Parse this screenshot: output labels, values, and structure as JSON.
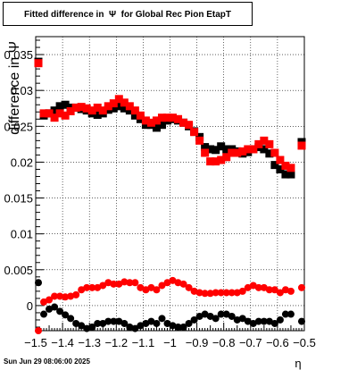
{
  "chart_data": {
    "type": "scatter",
    "title": "Fitted difference in  Ψ  for Global Rec Pion EtapT",
    "xlabel": "η",
    "ylabel": "difference in Ψ",
    "xlim": [
      -1.5,
      -0.5
    ],
    "ylim": [
      -0.0035,
      0.0375
    ],
    "grid": true,
    "x_ticks": [
      "−1.5",
      "−1.4",
      "−1.3",
      "−1.2",
      "−1.1",
      "−1",
      "−0.9",
      "−0.8",
      "−0.7",
      "−0.6",
      "−0.5"
    ],
    "y_ticks": [
      "0",
      "0.005",
      "0.01",
      "0.015",
      "0.02",
      "0.025",
      "0.03",
      "0.035"
    ],
    "series": [
      {
        "marker": "square",
        "color": "#000000",
        "points": [
          [
            -1.49,
            0.034
          ],
          [
            -1.47,
            0.0265
          ],
          [
            -1.45,
            0.0268
          ],
          [
            -1.43,
            0.0272
          ],
          [
            -1.41,
            0.0278
          ],
          [
            -1.39,
            0.028
          ],
          [
            -1.37,
            0.0276
          ],
          [
            -1.35,
            0.0276
          ],
          [
            -1.33,
            0.0274
          ],
          [
            -1.31,
            0.0272
          ],
          [
            -1.29,
            0.0268
          ],
          [
            -1.27,
            0.0266
          ],
          [
            -1.25,
            0.0268
          ],
          [
            -1.23,
            0.0273
          ],
          [
            -1.21,
            0.0275
          ],
          [
            -1.19,
            0.0278
          ],
          [
            -1.17,
            0.0275
          ],
          [
            -1.15,
            0.0272
          ],
          [
            -1.13,
            0.0265
          ],
          [
            -1.11,
            0.026
          ],
          [
            -1.09,
            0.0252
          ],
          [
            -1.07,
            0.0252
          ],
          [
            -1.05,
            0.0248
          ],
          [
            -1.03,
            0.0252
          ],
          [
            -1.01,
            0.0258
          ],
          [
            -0.99,
            0.026
          ],
          [
            -0.97,
            0.0258
          ],
          [
            -0.95,
            0.0255
          ],
          [
            -0.93,
            0.025
          ],
          [
            -0.91,
            0.0243
          ],
          [
            -0.89,
            0.0235
          ],
          [
            -0.87,
            0.0221
          ],
          [
            -0.85,
            0.0218
          ],
          [
            -0.83,
            0.0217
          ],
          [
            -0.81,
            0.0222
          ],
          [
            -0.79,
            0.0218
          ],
          [
            -0.77,
            0.0218
          ],
          [
            -0.75,
            0.0215
          ],
          [
            -0.73,
            0.0212
          ],
          [
            -0.71,
            0.0214
          ],
          [
            -0.69,
            0.0218
          ],
          [
            -0.67,
            0.0221
          ],
          [
            -0.65,
            0.0218
          ],
          [
            -0.63,
            0.0212
          ],
          [
            -0.61,
            0.0196
          ],
          [
            -0.59,
            0.019
          ],
          [
            -0.57,
            0.0183
          ],
          [
            -0.55,
            0.0183
          ],
          [
            -0.51,
            0.0228
          ]
        ]
      },
      {
        "marker": "square",
        "color": "#ff0000",
        "points": [
          [
            -1.49,
            0.0338
          ],
          [
            -1.47,
            0.0268
          ],
          [
            -1.45,
            0.0268
          ],
          [
            -1.43,
            0.0262
          ],
          [
            -1.41,
            0.0268
          ],
          [
            -1.39,
            0.0265
          ],
          [
            -1.37,
            0.0271
          ],
          [
            -1.35,
            0.0276
          ],
          [
            -1.33,
            0.0277
          ],
          [
            -1.31,
            0.0275
          ],
          [
            -1.29,
            0.0272
          ],
          [
            -1.27,
            0.0276
          ],
          [
            -1.25,
            0.0272
          ],
          [
            -1.23,
            0.0278
          ],
          [
            -1.21,
            0.0282
          ],
          [
            -1.19,
            0.0288
          ],
          [
            -1.17,
            0.0283
          ],
          [
            -1.15,
            0.0278
          ],
          [
            -1.13,
            0.0272
          ],
          [
            -1.11,
            0.0265
          ],
          [
            -1.09,
            0.0258
          ],
          [
            -1.07,
            0.0255
          ],
          [
            -1.05,
            0.0258
          ],
          [
            -1.03,
            0.0262
          ],
          [
            -1.01,
            0.0262
          ],
          [
            -0.99,
            0.0262
          ],
          [
            -0.97,
            0.026
          ],
          [
            -0.95,
            0.0255
          ],
          [
            -0.93,
            0.0252
          ],
          [
            -0.91,
            0.0242
          ],
          [
            -0.89,
            0.023
          ],
          [
            -0.87,
            0.0213
          ],
          [
            -0.85,
            0.0201
          ],
          [
            -0.83,
            0.0201
          ],
          [
            -0.81,
            0.0203
          ],
          [
            -0.79,
            0.0207
          ],
          [
            -0.77,
            0.0213
          ],
          [
            -0.75,
            0.0213
          ],
          [
            -0.73,
            0.0215
          ],
          [
            -0.71,
            0.0218
          ],
          [
            -0.69,
            0.0218
          ],
          [
            -0.67,
            0.0225
          ],
          [
            -0.65,
            0.023
          ],
          [
            -0.63,
            0.0225
          ],
          [
            -0.61,
            0.0213
          ],
          [
            -0.59,
            0.0203
          ],
          [
            -0.57,
            0.0195
          ],
          [
            -0.55,
            0.0192
          ],
          [
            -0.51,
            0.0223
          ]
        ]
      },
      {
        "marker": "circle",
        "color": "#ff0000",
        "points": [
          [
            -1.49,
            -0.0035
          ],
          [
            -1.47,
            0.0005
          ],
          [
            -1.45,
            0.0008
          ],
          [
            -1.43,
            0.0013
          ],
          [
            -1.41,
            0.0013
          ],
          [
            -1.39,
            0.0012
          ],
          [
            -1.37,
            0.0013
          ],
          [
            -1.35,
            0.0015
          ],
          [
            -1.33,
            0.0022
          ],
          [
            -1.31,
            0.0025
          ],
          [
            -1.29,
            0.0025
          ],
          [
            -1.27,
            0.0025
          ],
          [
            -1.25,
            0.0028
          ],
          [
            -1.23,
            0.0032
          ],
          [
            -1.21,
            0.003
          ],
          [
            -1.19,
            0.003
          ],
          [
            -1.17,
            0.0033
          ],
          [
            -1.15,
            0.0032
          ],
          [
            -1.13,
            0.0032
          ],
          [
            -1.11,
            0.0025
          ],
          [
            -1.09,
            0.0022
          ],
          [
            -1.07,
            0.0025
          ],
          [
            -1.05,
            0.0022
          ],
          [
            -1.03,
            0.0028
          ],
          [
            -1.01,
            0.0032
          ],
          [
            -0.99,
            0.0035
          ],
          [
            -0.97,
            0.0032
          ],
          [
            -0.95,
            0.003
          ],
          [
            -0.93,
            0.0025
          ],
          [
            -0.91,
            0.002
          ],
          [
            -0.89,
            0.0018
          ],
          [
            -0.87,
            0.0017
          ],
          [
            -0.85,
            0.0017
          ],
          [
            -0.83,
            0.0018
          ],
          [
            -0.81,
            0.0018
          ],
          [
            -0.79,
            0.0018
          ],
          [
            -0.77,
            0.0018
          ],
          [
            -0.75,
            0.0018
          ],
          [
            -0.73,
            0.002
          ],
          [
            -0.71,
            0.0025
          ],
          [
            -0.69,
            0.0028
          ],
          [
            -0.67,
            0.0025
          ],
          [
            -0.65,
            0.0025
          ],
          [
            -0.63,
            0.0022
          ],
          [
            -0.61,
            0.0022
          ],
          [
            -0.59,
            0.0018
          ],
          [
            -0.57,
            0.0022
          ],
          [
            -0.55,
            0.002
          ],
          [
            -0.51,
            0.0025
          ]
        ]
      },
      {
        "marker": "circle",
        "color": "#000000",
        "points": [
          [
            -1.49,
            0.0032
          ],
          [
            -1.47,
            -0.0012
          ],
          [
            -1.45,
            -0.0005
          ],
          [
            -1.43,
            -0.0002
          ],
          [
            -1.41,
            -0.0008
          ],
          [
            -1.39,
            -0.0013
          ],
          [
            -1.37,
            -0.0018
          ],
          [
            -1.35,
            -0.0025
          ],
          [
            -1.33,
            -0.0028
          ],
          [
            -1.31,
            -0.0032
          ],
          [
            -1.29,
            -0.003
          ],
          [
            -1.27,
            -0.0025
          ],
          [
            -1.25,
            -0.0025
          ],
          [
            -1.23,
            -0.0022
          ],
          [
            -1.21,
            -0.0022
          ],
          [
            -1.19,
            -0.0022
          ],
          [
            -1.17,
            -0.0025
          ],
          [
            -1.15,
            -0.003
          ],
          [
            -1.13,
            -0.0032
          ],
          [
            -1.11,
            -0.0028
          ],
          [
            -1.09,
            -0.0025
          ],
          [
            -1.07,
            -0.0022
          ],
          [
            -1.05,
            -0.0025
          ],
          [
            -1.03,
            -0.0018
          ],
          [
            -1.01,
            -0.0025
          ],
          [
            -0.99,
            -0.0028
          ],
          [
            -0.97,
            -0.003
          ],
          [
            -0.95,
            -0.003
          ],
          [
            -0.93,
            -0.0025
          ],
          [
            -0.91,
            -0.002
          ],
          [
            -0.89,
            -0.0015
          ],
          [
            -0.87,
            -0.0012
          ],
          [
            -0.85,
            -0.0015
          ],
          [
            -0.83,
            -0.0018
          ],
          [
            -0.81,
            -0.0012
          ],
          [
            -0.79,
            -0.0012
          ],
          [
            -0.77,
            -0.0015
          ],
          [
            -0.75,
            -0.002
          ],
          [
            -0.73,
            -0.0018
          ],
          [
            -0.71,
            -0.0022
          ],
          [
            -0.69,
            -0.0025
          ],
          [
            -0.67,
            -0.0022
          ],
          [
            -0.65,
            -0.0022
          ],
          [
            -0.63,
            -0.0022
          ],
          [
            -0.61,
            -0.0025
          ],
          [
            -0.59,
            -0.002
          ],
          [
            -0.57,
            -0.0012
          ],
          [
            -0.55,
            -0.0012
          ],
          [
            -0.51,
            -0.0022
          ]
        ]
      }
    ]
  },
  "footer": {
    "date": "Sun Jun 29 08:06:00 2025"
  }
}
